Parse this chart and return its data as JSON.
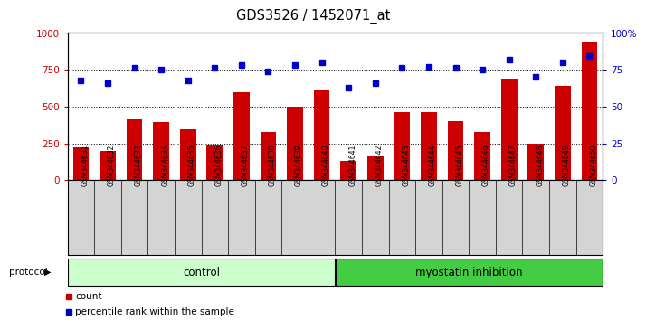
{
  "title": "GDS3526 / 1452071_at",
  "samples": [
    "GSM344631",
    "GSM344632",
    "GSM344633",
    "GSM344634",
    "GSM344635",
    "GSM344636",
    "GSM344637",
    "GSM344638",
    "GSM344639",
    "GSM344640",
    "GSM344641",
    "GSM344642",
    "GSM344643",
    "GSM344644",
    "GSM344645",
    "GSM344646",
    "GSM344647",
    "GSM344648",
    "GSM344649",
    "GSM344650"
  ],
  "counts": [
    220,
    195,
    410,
    395,
    345,
    240,
    600,
    330,
    500,
    615,
    130,
    160,
    460,
    460,
    400,
    330,
    690,
    245,
    640,
    940
  ],
  "percentile_ranks": [
    68,
    66,
    76,
    75,
    68,
    76,
    78,
    74,
    78,
    80,
    63,
    66,
    76,
    77,
    76,
    75,
    82,
    70,
    80,
    84
  ],
  "bar_color": "#cc0000",
  "dot_color": "#0000cc",
  "control_count": 10,
  "control_label": "control",
  "treatment_label": "myostatin inhibition",
  "control_bg": "#ccffcc",
  "treatment_bg": "#44cc44",
  "xtick_bg": "#d4d4d4",
  "ylim_left": [
    0,
    1000
  ],
  "yticks_left": [
    0,
    250,
    500,
    750,
    1000
  ],
  "yticks_right": [
    0,
    25,
    50,
    75,
    100
  ],
  "legend_count_label": "count",
  "legend_pct_label": "percentile rank within the sample",
  "protocol_label": "protocol"
}
